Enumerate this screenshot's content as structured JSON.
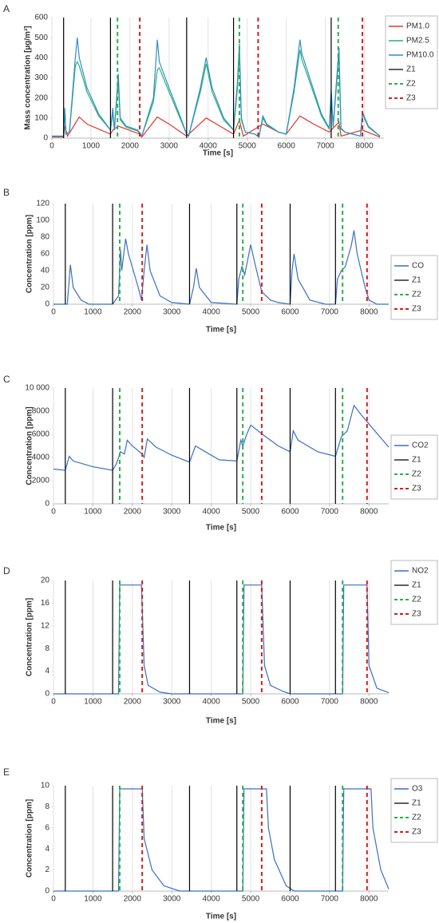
{
  "chart_data": [
    {
      "type": "line",
      "label": "A",
      "ylabel": "Mass concentration [µg/m³]",
      "xlabel": "Time [s]",
      "xlim": [
        0,
        8500
      ],
      "xticks": [
        0,
        1000,
        2000,
        3000,
        4000,
        5000,
        6000,
        7000,
        8000
      ],
      "ylim": [
        0,
        600
      ],
      "yticks": [
        0,
        100,
        200,
        300,
        400,
        500,
        600
      ],
      "grid": "x",
      "legend": "right",
      "series": [
        {
          "name": "PM1.0",
          "color": "#e3352b",
          "x": [
            0,
            300,
            330,
            400,
            700,
            900,
            1500,
            1560,
            1700,
            2250,
            2300,
            2700,
            3000,
            3450,
            3950,
            4300,
            4650,
            4800,
            4900,
            5400,
            5800,
            6000,
            6350,
            6700,
            7100,
            7350,
            7400,
            7950,
            8400
          ],
          "values": [
            5,
            5,
            60,
            10,
            105,
            70,
            20,
            40,
            60,
            20,
            5,
            105,
            70,
            10,
            100,
            60,
            20,
            90,
            10,
            70,
            30,
            20,
            110,
            70,
            30,
            80,
            10,
            40,
            5
          ]
        },
        {
          "name": "PM2.5",
          "color": "#27b37a",
          "x": [
            0,
            300,
            330,
            360,
            450,
            600,
            650,
            700,
            900,
            1200,
            1500,
            1560,
            1600,
            1700,
            1750,
            1900,
            2200,
            2300,
            2600,
            2700,
            2750,
            3000,
            3300,
            3450,
            3500,
            3800,
            3950,
            4100,
            4400,
            4650,
            4750,
            4800,
            4850,
            4950,
            5200,
            5300,
            5400,
            5500,
            5800,
            6000,
            6200,
            6350,
            6400,
            6600,
            6900,
            7100,
            7150,
            7200,
            7350,
            7400,
            7500,
            7900,
            7950,
            8100,
            8400
          ],
          "values": [
            10,
            10,
            140,
            20,
            30,
            360,
            380,
            360,
            230,
            110,
            40,
            130,
            40,
            290,
            90,
            55,
            35,
            10,
            180,
            340,
            350,
            230,
            90,
            20,
            10,
            230,
            370,
            230,
            90,
            40,
            250,
            430,
            90,
            30,
            20,
            5,
            100,
            65,
            30,
            20,
            230,
            440,
            390,
            280,
            110,
            45,
            220,
            55,
            420,
            45,
            30,
            10,
            120,
            55,
            10
          ]
        },
        {
          "name": "PM10.0",
          "color": "#2f8fc4",
          "x": [
            0,
            300,
            330,
            360,
            450,
            600,
            650,
            700,
            900,
            1200,
            1500,
            1560,
            1600,
            1700,
            1750,
            1900,
            2200,
            2300,
            2600,
            2700,
            2750,
            3000,
            3300,
            3450,
            3500,
            3800,
            3950,
            4100,
            4400,
            4650,
            4750,
            4800,
            4850,
            4950,
            5200,
            5300,
            5400,
            5500,
            5800,
            6000,
            6200,
            6350,
            6400,
            6600,
            6900,
            7100,
            7150,
            7200,
            7350,
            7400,
            7500,
            7900,
            7950,
            8100,
            8400
          ],
          "values": [
            10,
            10,
            150,
            20,
            30,
            400,
            500,
            400,
            250,
            120,
            40,
            150,
            40,
            320,
            100,
            60,
            40,
            10,
            200,
            490,
            380,
            250,
            100,
            20,
            10,
            250,
            400,
            250,
            100,
            40,
            280,
            470,
            100,
            30,
            20,
            5,
            110,
            70,
            30,
            20,
            250,
            490,
            420,
            300,
            120,
            50,
            240,
            60,
            450,
            50,
            30,
            10,
            130,
            60,
            10
          ]
        }
      ],
      "vlines": [
        {
          "name": "Z1",
          "color": "#000000",
          "dashed": false,
          "x": [
            300,
            1500,
            3450,
            4650,
            7150
          ]
        },
        {
          "name": "Z2",
          "color": "#2ab04a",
          "dashed": true,
          "x": [
            1680,
            4800,
            7330
          ]
        },
        {
          "name": "Z3",
          "color": "#d11f1f",
          "dashed": true,
          "x": [
            2250,
            5280,
            7950
          ]
        }
      ]
    },
    {
      "type": "line",
      "label": "B",
      "ylabel": "Concentration [ppm]",
      "xlabel": "Time [s]",
      "xlim": [
        0,
        8500
      ],
      "xticks": [
        0,
        1000,
        2000,
        3000,
        4000,
        5000,
        6000,
        7000,
        8000
      ],
      "ylim": [
        0,
        120
      ],
      "yticks": [
        0,
        20,
        40,
        60,
        80,
        100,
        120
      ],
      "grid": "x",
      "legend": "right",
      "series": [
        {
          "name": "CO",
          "color": "#3a6fc4",
          "x": [
            0,
            350,
            430,
            500,
            700,
            900,
            1500,
            1650,
            1700,
            1730,
            1830,
            1900,
            2150,
            2230,
            2300,
            2370,
            2450,
            2700,
            3000,
            3450,
            3550,
            3620,
            3700,
            4000,
            4650,
            4700,
            4780,
            4850,
            5000,
            5100,
            5280,
            5500,
            5700,
            6000,
            6050,
            6100,
            6200,
            6500,
            6900,
            7150,
            7200,
            7300,
            7400,
            7550,
            7620,
            7700,
            7900,
            8000,
            8200,
            8500
          ],
          "values": [
            0,
            0,
            47,
            20,
            5,
            0,
            0,
            10,
            65,
            40,
            78,
            60,
            20,
            5,
            40,
            71,
            40,
            10,
            2,
            0,
            20,
            43,
            20,
            2,
            0,
            30,
            45,
            35,
            71,
            50,
            15,
            5,
            2,
            0,
            40,
            60,
            30,
            5,
            0,
            0,
            30,
            40,
            45,
            70,
            88,
            60,
            20,
            5,
            0,
            0
          ]
        }
      ],
      "vlines": [
        {
          "name": "Z1",
          "color": "#000000",
          "dashed": false,
          "x": [
            300,
            1500,
            3450,
            4650,
            6000,
            7150
          ]
        },
        {
          "name": "Z2",
          "color": "#2ab04a",
          "dashed": true,
          "x": [
            1680,
            4800,
            7330
          ]
        },
        {
          "name": "Z3",
          "color": "#d11f1f",
          "dashed": true,
          "x": [
            2250,
            5280,
            7950
          ]
        }
      ]
    },
    {
      "type": "line",
      "label": "C",
      "ylabel": "Concentration [ppm]",
      "xlabel": "Time [s]",
      "xlim": [
        0,
        8500
      ],
      "xticks": [
        0,
        1000,
        2000,
        3000,
        4000,
        5000,
        6000,
        7000,
        8000
      ],
      "ylim": [
        0,
        10000
      ],
      "yticks": [
        0,
        2000,
        4000,
        6000,
        8000,
        {
          "value": 10000,
          "label": "10 000"
        }
      ],
      "grid": "x",
      "legend": "right",
      "series": [
        {
          "name": "CO2",
          "color": "#3a6fc4",
          "x": [
            0,
            300,
            400,
            500,
            1000,
            1500,
            1600,
            1700,
            1800,
            1870,
            2000,
            2250,
            2300,
            2380,
            2600,
            3000,
            3450,
            3600,
            3800,
            4200,
            4650,
            4750,
            4800,
            4900,
            5000,
            5300,
            5700,
            6000,
            6080,
            6200,
            6700,
            7150,
            7300,
            7450,
            7620,
            7800,
            8100,
            8500
          ],
          "values": [
            3000,
            2900,
            4100,
            3700,
            3200,
            2900,
            3500,
            4500,
            4300,
            5500,
            5000,
            4300,
            4000,
            5600,
            4900,
            4200,
            3600,
            5000,
            4600,
            3800,
            3700,
            5500,
            5000,
            6000,
            6800,
            6000,
            5000,
            4500,
            6300,
            5500,
            4500,
            4100,
            5800,
            6300,
            8500,
            7700,
            6500,
            4900
          ]
        }
      ],
      "vlines": [
        {
          "name": "Z1",
          "color": "#000000",
          "dashed": false,
          "x": [
            300,
            1500,
            3450,
            4650,
            6000,
            7150
          ]
        },
        {
          "name": "Z2",
          "color": "#2ab04a",
          "dashed": true,
          "x": [
            1680,
            4800,
            7330
          ]
        },
        {
          "name": "Z3",
          "color": "#d11f1f",
          "dashed": true,
          "x": [
            2250,
            5280,
            7950
          ]
        }
      ]
    },
    {
      "type": "line",
      "label": "D",
      "ylabel": "Concentration [ppm]",
      "xlabel": "Time [s]",
      "xlim": [
        0,
        8500
      ],
      "xticks": [
        0,
        1000,
        2000,
        3000,
        4000,
        5000,
        6000,
        7000,
        8000
      ],
      "ylim": [
        0,
        20
      ],
      "yticks": [
        0,
        4,
        8,
        12,
        16,
        20
      ],
      "grid": "x",
      "legend": "right",
      "series": [
        {
          "name": "NO2",
          "color": "#3a6fc4",
          "x": [
            0,
            1650,
            1680,
            2230,
            2300,
            2400,
            2700,
            3000,
            4800,
            4830,
            5280,
            5350,
            5500,
            5800,
            6000,
            7330,
            7360,
            7950,
            8000,
            8200,
            8500
          ],
          "values": [
            0,
            0,
            19.2,
            19.2,
            5,
            1.5,
            0.3,
            0,
            0,
            19.2,
            19.2,
            5,
            1.5,
            0.5,
            0,
            0,
            19.2,
            19.2,
            5,
            1,
            0.2
          ]
        }
      ],
      "vlines": [
        {
          "name": "Z1",
          "color": "#000000",
          "dashed": false,
          "x": [
            300,
            1500,
            3450,
            4650,
            6000,
            7150
          ]
        },
        {
          "name": "Z2",
          "color": "#2ab04a",
          "dashed": true,
          "x": [
            1680,
            4800,
            7330
          ]
        },
        {
          "name": "Z3",
          "color": "#d11f1f",
          "dashed": true,
          "x": [
            2250,
            5280,
            7950
          ]
        }
      ]
    },
    {
      "type": "line",
      "label": "E",
      "ylabel": "Concentration [ppm]",
      "xlabel": "Time [s]",
      "xlim": [
        0,
        8500
      ],
      "xticks": [
        0,
        1000,
        2000,
        3000,
        4000,
        5000,
        6000,
        7000,
        8000
      ],
      "ylim": [
        0,
        10
      ],
      "yticks": [
        0,
        2,
        4,
        6,
        8,
        10
      ],
      "grid": "x",
      "legend": "right",
      "series": [
        {
          "name": "O3",
          "color": "#3a6fc4",
          "x": [
            0,
            1650,
            1680,
            2250,
            2300,
            2500,
            2800,
            3200,
            4800,
            4830,
            5400,
            5450,
            5600,
            5900,
            6100,
            7330,
            7360,
            8050,
            8100,
            8300,
            8500
          ],
          "values": [
            0,
            0,
            9.7,
            9.7,
            5,
            2,
            0.5,
            0,
            0,
            9.7,
            9.7,
            6,
            3,
            0.5,
            0,
            0,
            9.7,
            9.7,
            6,
            2,
            0.2
          ]
        }
      ],
      "vlines": [
        {
          "name": "Z1",
          "color": "#000000",
          "dashed": false,
          "x": [
            300,
            1500,
            3450,
            4650,
            6000,
            7150
          ]
        },
        {
          "name": "Z2",
          "color": "#2ab04a",
          "dashed": true,
          "x": [
            1680,
            4800,
            7330
          ]
        },
        {
          "name": "Z3",
          "color": "#d11f1f",
          "dashed": true,
          "x": [
            2250,
            5280,
            7950
          ]
        }
      ]
    }
  ]
}
